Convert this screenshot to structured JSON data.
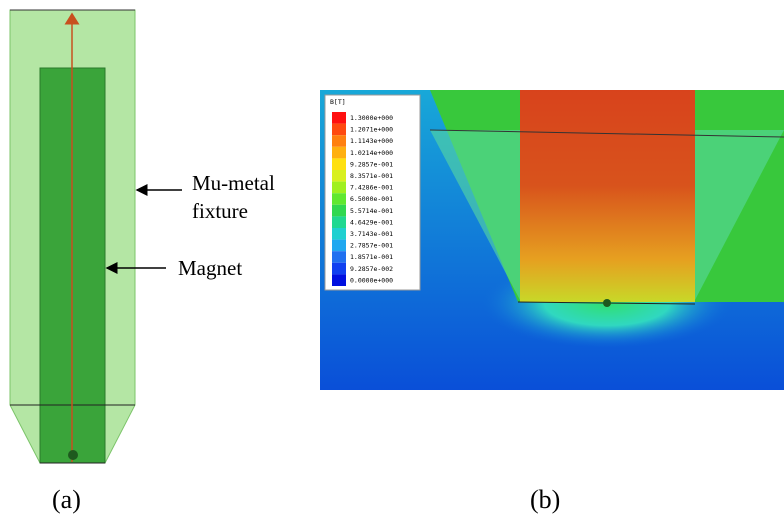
{
  "panel_a": {
    "label": "(a)",
    "callouts": [
      {
        "lines": [
          "Mu-metal",
          "fixture"
        ]
      },
      {
        "lines": [
          "Magnet"
        ]
      }
    ]
  },
  "panel_b": {
    "label": "(b)",
    "legend": {
      "title": "B[T]",
      "entries": [
        "1.3000e+000",
        "1.2071e+000",
        "1.1143e+000",
        "1.0214e+000",
        "9.2857e-001",
        "8.3571e-001",
        "7.4286e-001",
        "6.5000e-001",
        "5.5714e-001",
        "4.6429e-001",
        "3.7143e-001",
        "2.7857e-001",
        "1.8571e-001",
        "9.2857e-002",
        "0.0000e+000"
      ]
    }
  }
}
